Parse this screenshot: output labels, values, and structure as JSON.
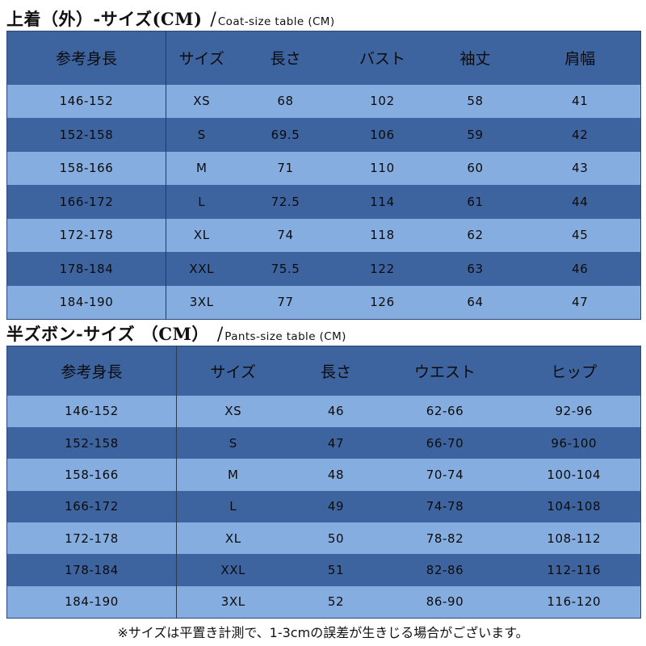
{
  "coat": {
    "title": "上着（外）-サイズ(CM)",
    "slash": "/",
    "subtitle": "Coat-size table (CM)",
    "headers": [
      "参考身長",
      "サイズ",
      "長さ",
      "バスト",
      "袖丈",
      "肩幅"
    ],
    "rows": [
      [
        "146-152",
        "XS",
        "68",
        "102",
        "58",
        "41"
      ],
      [
        "152-158",
        "S",
        "69.5",
        "106",
        "59",
        "42"
      ],
      [
        "158-166",
        "M",
        "71",
        "110",
        "60",
        "43"
      ],
      [
        "166-172",
        "L",
        "72.5",
        "114",
        "61",
        "44"
      ],
      [
        "172-178",
        "XL",
        "74",
        "118",
        "62",
        "45"
      ],
      [
        "178-184",
        "XXL",
        "75.5",
        "122",
        "63",
        "46"
      ],
      [
        "184-190",
        "3XL",
        "77",
        "126",
        "64",
        "47"
      ]
    ]
  },
  "pants": {
    "title": "半ズボン-サイズ （CM）",
    "slash": "/",
    "subtitle": "Pants-size table (CM)",
    "headers": [
      "参考身長",
      "サイズ",
      "長さ",
      "ウエスト",
      "ヒップ"
    ],
    "rows": [
      [
        "146-152",
        "XS",
        "46",
        "62-66",
        "92-96"
      ],
      [
        "152-158",
        "S",
        "47",
        "66-70",
        "96-100"
      ],
      [
        "158-166",
        "M",
        "48",
        "70-74",
        "100-104"
      ],
      [
        "166-172",
        "L",
        "49",
        "74-78",
        "104-108"
      ],
      [
        "172-178",
        "XL",
        "50",
        "78-82",
        "108-112"
      ],
      [
        "178-184",
        "XXL",
        "51",
        "82-86",
        "112-116"
      ],
      [
        "184-190",
        "3XL",
        "52",
        "86-90",
        "116-120"
      ]
    ]
  },
  "footnote": "※サイズは平置き計測で、1-3cmの誤差が生きじる場合がございます。",
  "colors": {
    "row_light": "#86ade0",
    "row_dark": "#3e64a0",
    "header": "#3e64a0"
  }
}
